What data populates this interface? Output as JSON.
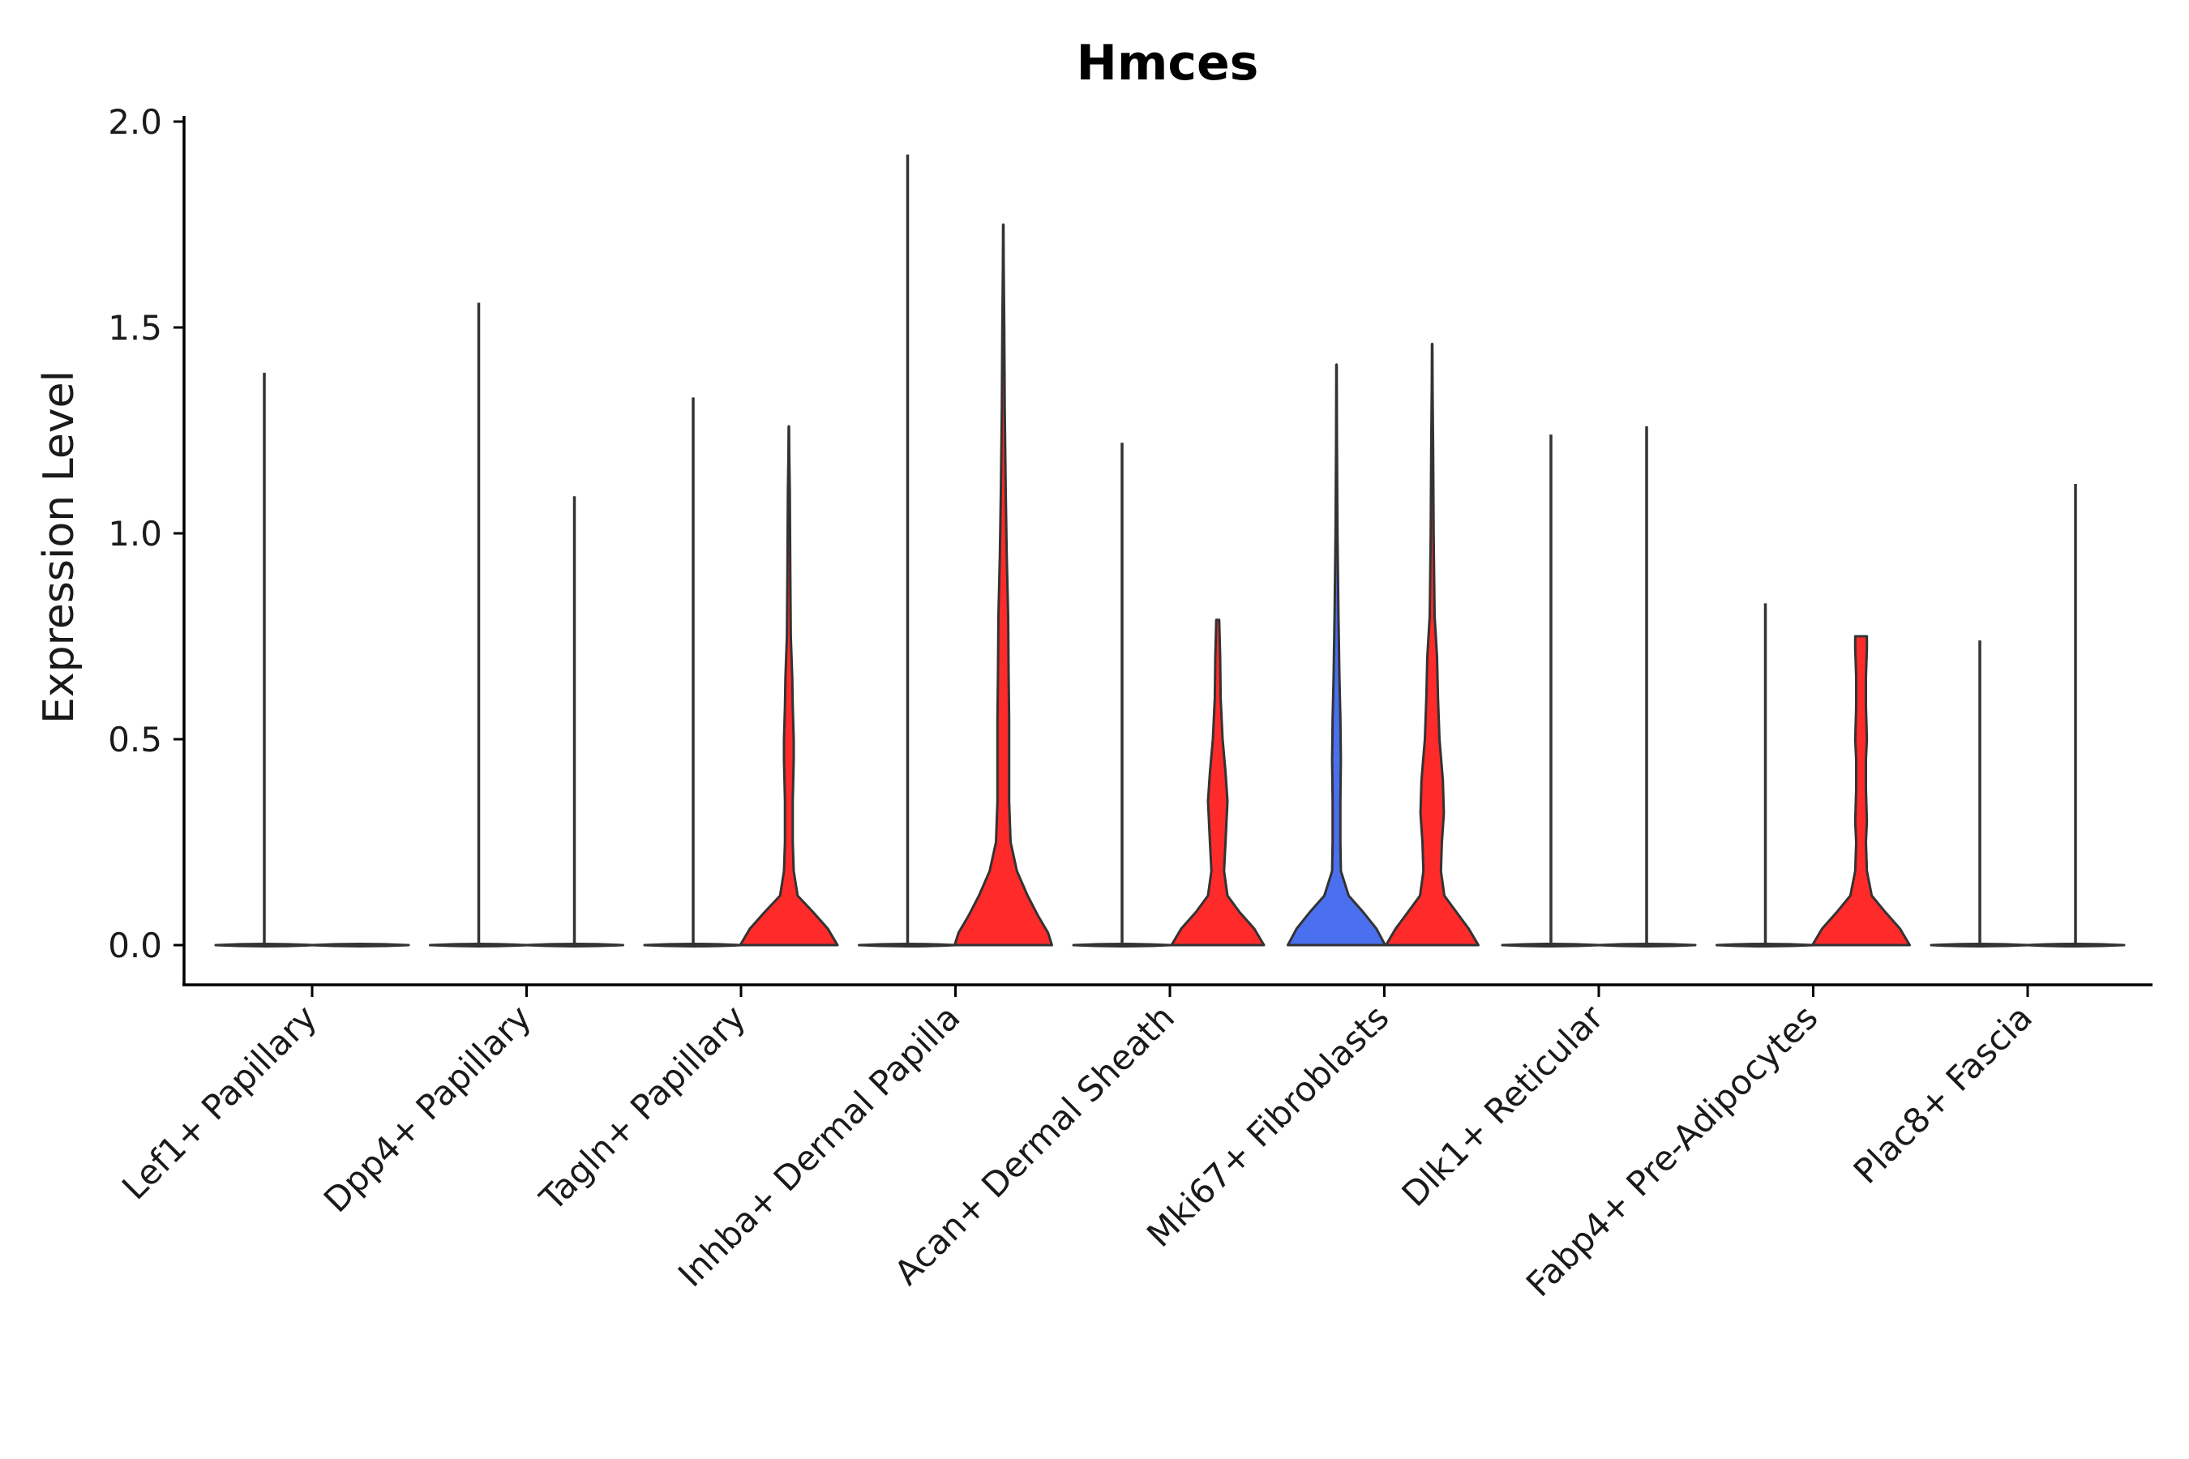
{
  "chart_data": {
    "type": "violin",
    "title": "Hmces",
    "xlabel": "",
    "ylabel": "Expression Level",
    "ylim": [
      -0.1,
      2.0
    ],
    "yticks": [
      0.0,
      0.5,
      1.0,
      1.5,
      2.0
    ],
    "ytick_labels": [
      "0.0",
      "0.5",
      "1.0",
      "1.5",
      "2.0"
    ],
    "grid": false,
    "legend": "none",
    "colors": {
      "expressed": "#ff2a2a",
      "highlight": "#4a6fef",
      "outline": "#333333"
    },
    "groups": [
      {
        "label": "Lef1+ Papillary",
        "violins": [
          {
            "max": 1.39,
            "color": "#ff2a2a",
            "profile": []
          },
          {
            "max": 0.0,
            "color": "#ff2a2a",
            "profile": []
          }
        ]
      },
      {
        "label": "Dpp4+ Papillary",
        "violins": [
          {
            "max": 1.56,
            "color": "#ff2a2a",
            "profile": []
          },
          {
            "max": 1.09,
            "color": "#ff2a2a",
            "profile": []
          }
        ]
      },
      {
        "label": "Tagln+ Papillary",
        "violins": [
          {
            "max": 1.33,
            "color": "#ff2a2a",
            "profile": []
          },
          {
            "max": 1.26,
            "color": "#ff2a2a",
            "profile": [
              [
                0,
                1.0
              ],
              [
                0.04,
                0.8
              ],
              [
                0.08,
                0.5
              ],
              [
                0.12,
                0.18
              ],
              [
                0.18,
                0.1
              ],
              [
                0.25,
                0.08
              ],
              [
                0.35,
                0.08
              ],
              [
                0.45,
                0.1
              ],
              [
                0.5,
                0.1
              ],
              [
                0.58,
                0.08
              ],
              [
                0.65,
                0.07
              ],
              [
                0.75,
                0.04
              ],
              [
                0.9,
                0.03
              ],
              [
                1.1,
                0.02
              ],
              [
                1.26,
                0
              ]
            ]
          }
        ]
      },
      {
        "label": "Inhba+ Dermal Papilla",
        "violins": [
          {
            "max": 1.92,
            "color": "#ff2a2a",
            "profile": []
          },
          {
            "max": 1.75,
            "color": "#ff2a2a",
            "profile": [
              [
                0,
                1.0
              ],
              [
                0.03,
                0.92
              ],
              [
                0.07,
                0.72
              ],
              [
                0.12,
                0.5
              ],
              [
                0.18,
                0.28
              ],
              [
                0.25,
                0.15
              ],
              [
                0.35,
                0.12
              ],
              [
                0.45,
                0.12
              ],
              [
                0.55,
                0.12
              ],
              [
                0.65,
                0.11
              ],
              [
                0.8,
                0.1
              ],
              [
                0.95,
                0.07
              ],
              [
                1.1,
                0.05
              ],
              [
                1.3,
                0.03
              ],
              [
                1.5,
                0.02
              ],
              [
                1.75,
                0
              ]
            ]
          }
        ]
      },
      {
        "label": "Acan+ Dermal Sheath",
        "violins": [
          {
            "max": 1.22,
            "color": "#ff2a2a",
            "profile": []
          },
          {
            "max": 0.79,
            "color": "#ff2a2a",
            "profile": [
              [
                0,
                0.95
              ],
              [
                0.04,
                0.75
              ],
              [
                0.08,
                0.45
              ],
              [
                0.12,
                0.2
              ],
              [
                0.18,
                0.13
              ],
              [
                0.25,
                0.16
              ],
              [
                0.35,
                0.2
              ],
              [
                0.42,
                0.16
              ],
              [
                0.5,
                0.1
              ],
              [
                0.6,
                0.06
              ],
              [
                0.7,
                0.05
              ],
              [
                0.79,
                0.03
              ]
            ]
          }
        ]
      },
      {
        "label": "Mki67+ Fibroblasts",
        "violins": [
          {
            "max": 1.41,
            "color": "#4a6fef",
            "profile": [
              [
                0,
                1.0
              ],
              [
                0.04,
                0.82
              ],
              [
                0.08,
                0.55
              ],
              [
                0.12,
                0.25
              ],
              [
                0.18,
                0.09
              ],
              [
                0.25,
                0.08
              ],
              [
                0.35,
                0.08
              ],
              [
                0.45,
                0.09
              ],
              [
                0.55,
                0.08
              ],
              [
                0.65,
                0.06
              ],
              [
                0.8,
                0.04
              ],
              [
                1.0,
                0.02
              ],
              [
                1.2,
                0.01
              ],
              [
                1.41,
                0
              ]
            ]
          },
          {
            "max": 1.46,
            "color": "#ff2a2a",
            "profile": [
              [
                0,
                0.95
              ],
              [
                0.04,
                0.75
              ],
              [
                0.08,
                0.5
              ],
              [
                0.12,
                0.25
              ],
              [
                0.18,
                0.18
              ],
              [
                0.25,
                0.2
              ],
              [
                0.32,
                0.24
              ],
              [
                0.4,
                0.22
              ],
              [
                0.5,
                0.15
              ],
              [
                0.6,
                0.12
              ],
              [
                0.7,
                0.1
              ],
              [
                0.8,
                0.05
              ],
              [
                1.0,
                0.03
              ],
              [
                1.2,
                0.02
              ],
              [
                1.46,
                0
              ]
            ]
          }
        ]
      },
      {
        "label": "Dlk1+ Reticular",
        "violins": [
          {
            "max": 1.24,
            "color": "#ff2a2a",
            "profile": []
          },
          {
            "max": 1.26,
            "color": "#ff2a2a",
            "profile": []
          }
        ]
      },
      {
        "label": "Fabp4+ Pre-Adipocytes",
        "violins": [
          {
            "max": 0.83,
            "color": "#ff2a2a",
            "profile": []
          },
          {
            "max": 0.75,
            "color": "#ff2a2a",
            "profile": [
              [
                0,
                1.0
              ],
              [
                0.04,
                0.8
              ],
              [
                0.08,
                0.5
              ],
              [
                0.12,
                0.22
              ],
              [
                0.18,
                0.12
              ],
              [
                0.25,
                0.1
              ],
              [
                0.3,
                0.12
              ],
              [
                0.38,
                0.1
              ],
              [
                0.45,
                0.1
              ],
              [
                0.5,
                0.12
              ],
              [
                0.58,
                0.1
              ],
              [
                0.65,
                0.1
              ],
              [
                0.72,
                0.12
              ],
              [
                0.75,
                0.12
              ]
            ]
          }
        ]
      },
      {
        "label": "Plac8+ Fascia",
        "violins": [
          {
            "max": 0.74,
            "color": "#ff2a2a",
            "profile": []
          },
          {
            "max": 1.12,
            "color": "#ff2a2a",
            "profile": []
          }
        ]
      }
    ]
  }
}
